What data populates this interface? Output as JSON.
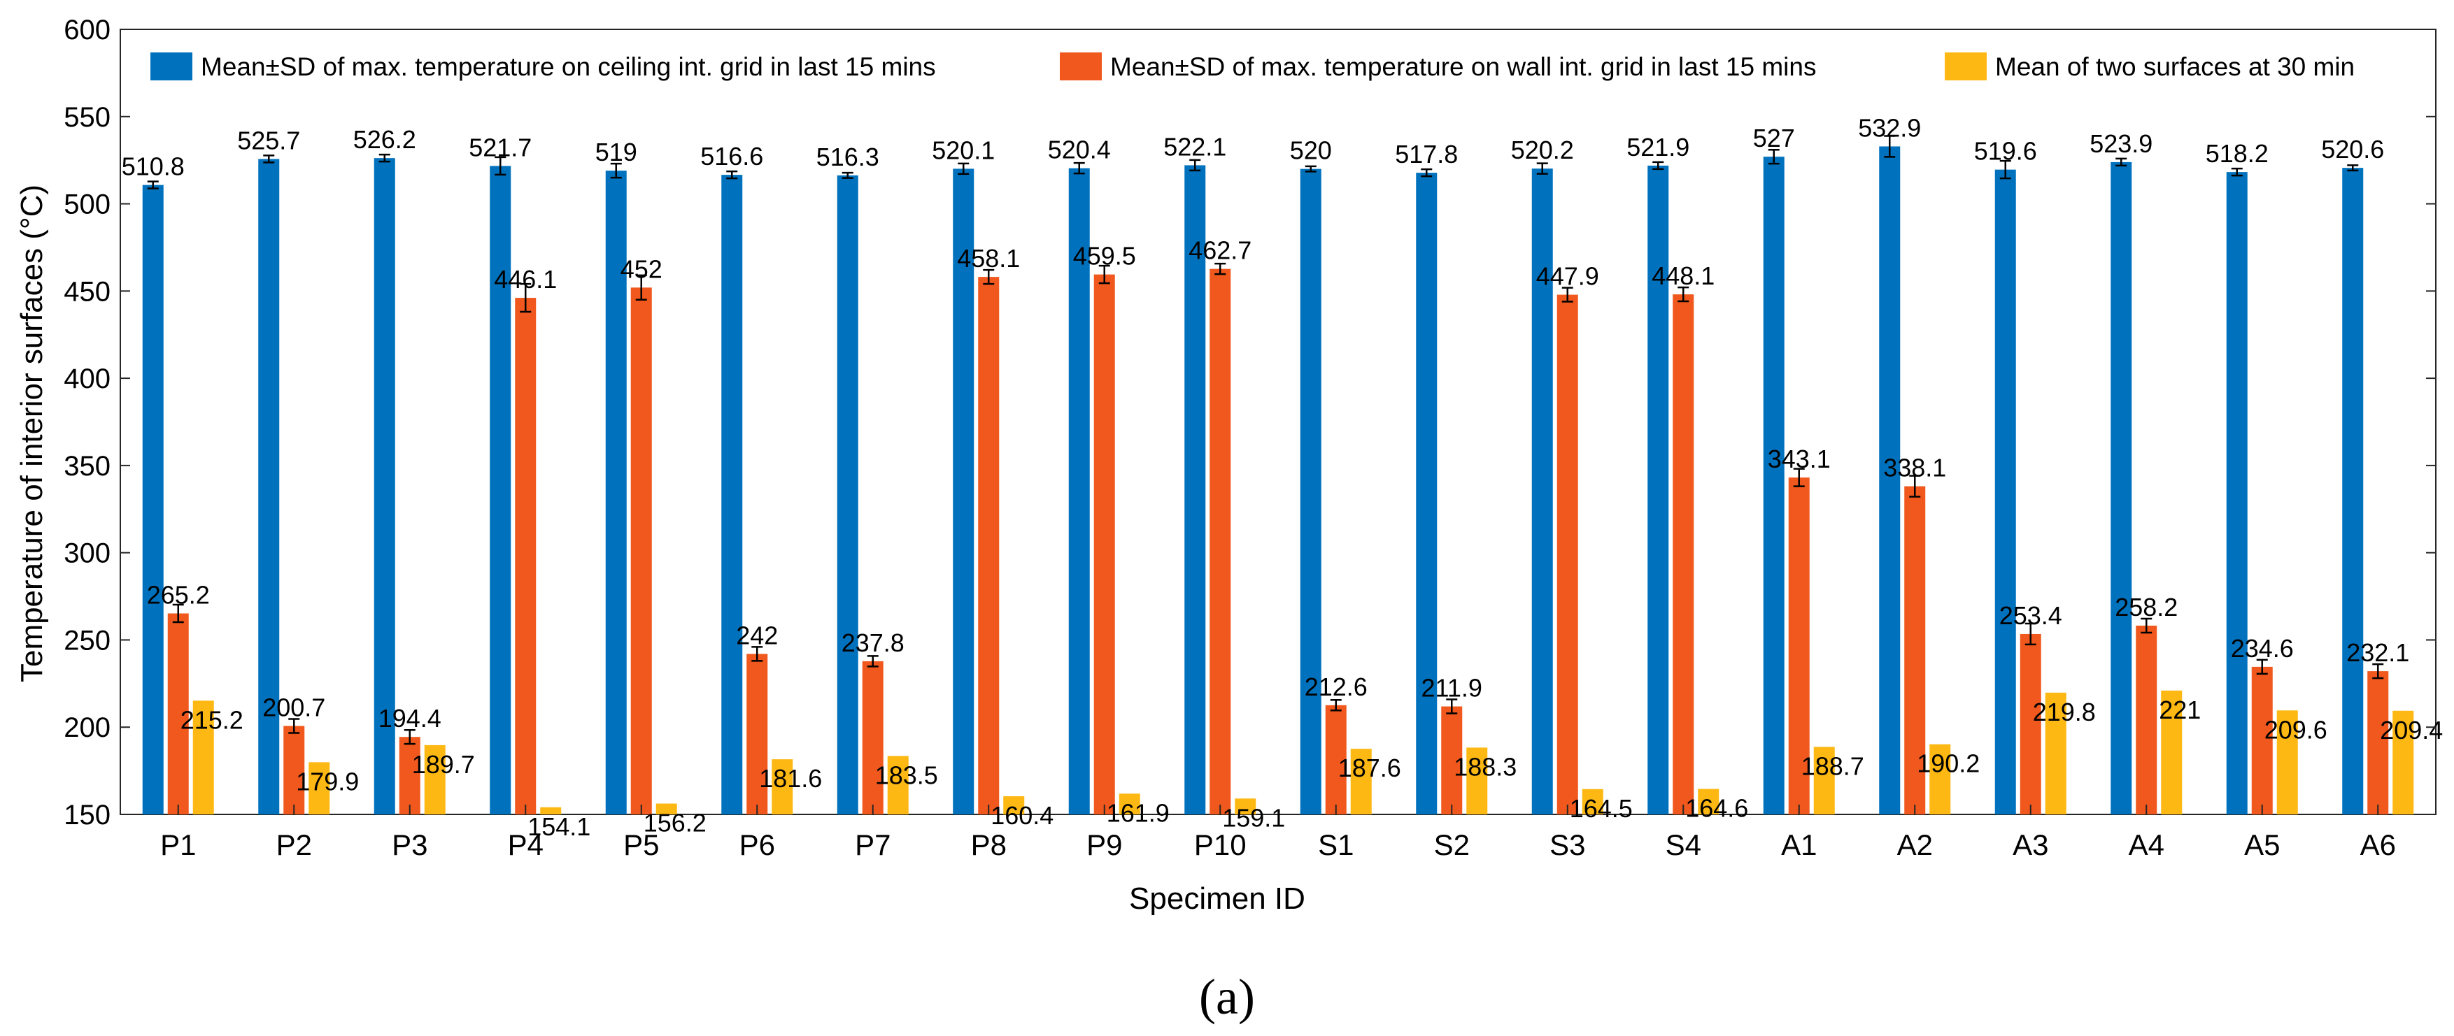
{
  "chart_data": {
    "type": "bar",
    "title": "",
    "xlabel": "Specimen ID",
    "ylabel": "Temperature of interior surfaces (°C)",
    "ylim": [
      150,
      600
    ],
    "yticks": [
      150,
      200,
      250,
      300,
      350,
      400,
      450,
      500,
      550,
      600
    ],
    "grid": false,
    "legend_position": "top",
    "categories": [
      "P1",
      "P2",
      "P3",
      "P4",
      "P5",
      "P6",
      "P7",
      "P8",
      "P9",
      "P10",
      "S1",
      "S2",
      "S3",
      "S4",
      "A1",
      "A2",
      "A3",
      "A4",
      "A5",
      "A6"
    ],
    "series": [
      {
        "name": "Mean±SD of max. temperature on ceiling int. grid in last 15 mins",
        "color": "#0072BD",
        "values": [
          510.8,
          525.7,
          526.2,
          521.7,
          519,
          516.6,
          516.3,
          520.1,
          520.4,
          522.1,
          520,
          517.8,
          520.2,
          521.9,
          527,
          532.9,
          519.6,
          523.9,
          518.2,
          520.6
        ],
        "labels": [
          "510.8",
          "525.7",
          "526.2",
          "521.7",
          "519",
          "516.6",
          "516.3",
          "520.1",
          "520.4",
          "522.1",
          "520",
          "517.8",
          "520.2",
          "521.9",
          "527",
          "532.9",
          "519.6",
          "523.9",
          "518.2",
          "520.6"
        ],
        "errors": [
          2,
          2,
          2,
          5,
          4,
          2,
          1.5,
          3,
          3,
          3,
          1.5,
          2,
          3,
          2,
          4,
          6,
          5,
          2,
          2,
          1.5
        ]
      },
      {
        "name": "Mean±SD of max. temperature on wall int. grid in last 15 mins",
        "color": "#F0581D",
        "values": [
          265.2,
          200.7,
          194.4,
          446.1,
          452,
          242,
          237.8,
          458.1,
          459.5,
          462.7,
          212.6,
          211.9,
          447.9,
          448.1,
          343.1,
          338.1,
          253.4,
          258.2,
          234.6,
          232.1
        ],
        "labels": [
          "265.2",
          "200.7",
          "194.4",
          "446.1",
          "452",
          "242",
          "237.8",
          "458.1",
          "459.5",
          "462.7",
          "212.6",
          "211.9",
          "447.9",
          "448.1",
          "343.1",
          "338.1",
          "253.4",
          "258.2",
          "234.6",
          "232.1"
        ],
        "errors": [
          5,
          4,
          4,
          8,
          7,
          4,
          3,
          4,
          5,
          3,
          3,
          4,
          4,
          4,
          5,
          6,
          6,
          4,
          4,
          4
        ]
      },
      {
        "name": "Mean of two surfaces at 30 min",
        "color": "#FDB813",
        "values": [
          215.2,
          179.9,
          189.7,
          154.1,
          156.2,
          181.6,
          183.5,
          160.4,
          161.9,
          159.1,
          187.6,
          188.3,
          164.5,
          164.6,
          188.7,
          190.2,
          219.8,
          221,
          209.6,
          209.4
        ],
        "labels": [
          "215.2",
          "179.9",
          "189.7",
          "154.1",
          "156.2",
          "181.6",
          "183.5",
          "160.4",
          "161.9",
          "159.1",
          "187.6",
          "188.3",
          "164.5",
          "164.6",
          "188.7",
          "190.2",
          "219.8",
          "221",
          "209.6",
          "209.4"
        ]
      }
    ]
  },
  "caption": "(a)"
}
